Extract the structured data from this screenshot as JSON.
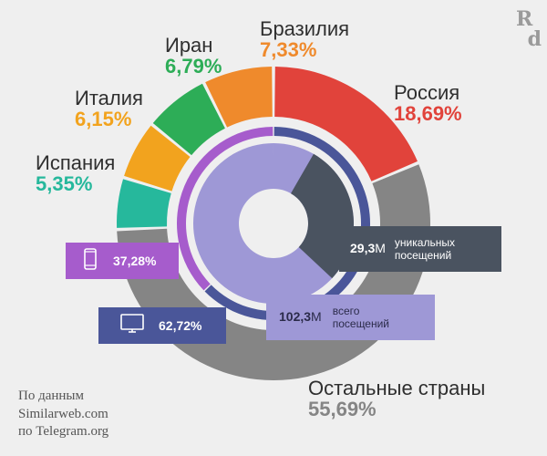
{
  "logo": {
    "letter1": "R",
    "letter2": "d"
  },
  "chart_data": {
    "type": "donut",
    "rings": [
      {
        "name": "",
        "slices": [
          {
            "label": "Россия",
            "value": 18.69,
            "value_text": "18,69%",
            "color": "#e1433b"
          },
          {
            "label": "Остальные страны",
            "value": 55.69,
            "value_text": "55,69%",
            "color": "#858585"
          },
          {
            "label": "Испания",
            "value": 5.35,
            "value_text": "5,35%",
            "color": "#26b89c"
          },
          {
            "label": "Италия",
            "value": 6.15,
            "value_text": "6,15%",
            "color": "#f2a31e"
          },
          {
            "label": "Иран",
            "value": 6.79,
            "value_text": "6,79%",
            "color": "#2dad57"
          },
          {
            "label": "Бразилия",
            "value": 7.33,
            "value_text": "7,33%",
            "color": "#ef8a2c"
          }
        ]
      },
      {
        "name": "",
        "slices": [
          {
            "label": "desktop",
            "value": 62.72,
            "value_text": "62,72%",
            "color": "#4a5699"
          },
          {
            "label": "mobile",
            "value": 37.28,
            "value_text": "37,28%",
            "color": "#a65ccc"
          }
        ]
      },
      {
        "name": "",
        "slices": [
          {
            "label": "уникальных посещений",
            "value": 29.3,
            "value_text": "29,3",
            "unit": "M",
            "color": "#4a5360"
          },
          {
            "label": "всего посещений",
            "value": 102.3,
            "value_text": "102,3",
            "unit": "M",
            "color": "#9e98d6"
          }
        ]
      }
    ]
  },
  "labels": {
    "russia": {
      "name": "Россия",
      "pct": "18,69%"
    },
    "brazil": {
      "name": "Бразилия",
      "pct": "7,33%"
    },
    "iran": {
      "name": "Иран",
      "pct": "6,79%"
    },
    "italy": {
      "name": "Италия",
      "pct": "6,15%"
    },
    "spain": {
      "name": "Испания",
      "pct": "5,35%"
    },
    "other": {
      "name": "Остальные страны",
      "pct": "55,69%"
    }
  },
  "devices": {
    "mobile": {
      "pct": "37,28%",
      "icon": "smartphone-icon",
      "color": "#a65ccc"
    },
    "desktop": {
      "pct": "62,72%",
      "icon": "monitor-icon",
      "color": "#4a5699"
    }
  },
  "visits": {
    "unique": {
      "value": "29,3",
      "unit": "M",
      "line1": "уникальных",
      "line2": "посещений",
      "color": "#4a5360"
    },
    "total": {
      "value": "102,3",
      "unit": "M",
      "line1": "всего",
      "line2": "посещений",
      "color": "#9e98d6"
    }
  },
  "source": {
    "line1": "По данным",
    "line2": "Similarweb.com",
    "line3": "по Telegram.org"
  }
}
